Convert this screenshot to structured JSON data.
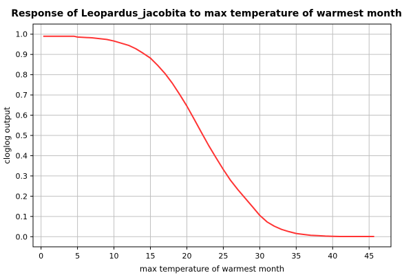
{
  "chart_data": {
    "type": "line",
    "title": "Response of Leopardus_jacobita to max temperature of warmest month",
    "xlabel": "max temperature of warmest month",
    "ylabel": "cloglog output",
    "xlim": [
      -1.1,
      48.0
    ],
    "ylim": [
      -0.05,
      1.05
    ],
    "xticks": [
      0,
      5,
      10,
      15,
      20,
      25,
      30,
      35,
      40,
      45
    ],
    "yticks": [
      0.0,
      0.1,
      0.2,
      0.3,
      0.4,
      0.5,
      0.6,
      0.7,
      0.8,
      0.9,
      1.0
    ],
    "xtick_labels": [
      "0",
      "5",
      "10",
      "15",
      "20",
      "25",
      "30",
      "35",
      "40",
      "45"
    ],
    "ytick_labels": [
      "0.0",
      "0.1",
      "0.2",
      "0.3",
      "0.4",
      "0.5",
      "0.6",
      "0.7",
      "0.8",
      "0.9",
      "1.0"
    ],
    "grid": true,
    "series": [
      {
        "color": "#ff3333",
        "x": [
          0.3,
          2,
          4.5,
          5,
          7,
          9,
          10,
          12,
          13,
          14,
          15,
          16,
          17,
          18,
          19,
          20,
          21,
          22,
          23,
          24,
          25,
          26,
          27,
          28,
          29,
          30,
          31,
          32,
          33,
          34,
          35,
          36,
          37,
          38,
          39,
          40,
          41,
          42,
          43,
          44,
          45.7
        ],
        "y": [
          0.99,
          0.99,
          0.99,
          0.986,
          0.982,
          0.974,
          0.966,
          0.945,
          0.928,
          0.906,
          0.882,
          0.846,
          0.806,
          0.758,
          0.703,
          0.645,
          0.58,
          0.515,
          0.45,
          0.39,
          0.332,
          0.278,
          0.232,
          0.19,
          0.148,
          0.105,
          0.073,
          0.052,
          0.036,
          0.025,
          0.016,
          0.011,
          0.007,
          0.005,
          0.003,
          0.002,
          0.001,
          0.001,
          0.001,
          0.001,
          0.001
        ]
      }
    ]
  }
}
